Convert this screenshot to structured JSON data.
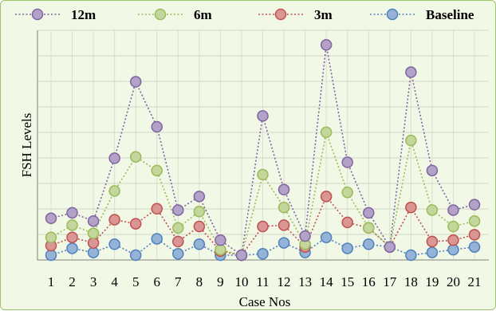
{
  "chart_data": {
    "type": "line",
    "ylabel": "FSH Levels",
    "xlabel": "Case Nos",
    "categories": [
      "1",
      "2",
      "3",
      "4",
      "5",
      "6",
      "7",
      "8",
      "9",
      "10",
      "11",
      "12",
      "13",
      "14",
      "15",
      "16",
      "17",
      "18",
      "19",
      "20",
      "21"
    ],
    "grid": true,
    "legend_position": "top",
    "series": [
      {
        "name": "12m",
        "color": "#8064a2",
        "fill": "#b3a2c7",
        "values": [
          13.5,
          15.5,
          12.5,
          35.5,
          63.5,
          47.0,
          16.5,
          21.5,
          5.5,
          0.0,
          51.0,
          24.0,
          7.0,
          77.0,
          34.0,
          15.5,
          3.0,
          67.0,
          31.0,
          16.5,
          18.5
        ]
      },
      {
        "name": "6m",
        "color": "#9bbb59",
        "fill": "#c3d69b",
        "values": [
          6.5,
          11.0,
          8.0,
          23.5,
          36.0,
          31.0,
          10.0,
          16.0,
          2.0,
          0.0,
          29.5,
          17.5,
          4.0,
          45.0,
          23.0,
          10.0,
          3.0,
          42.0,
          16.5,
          10.5,
          12.5
        ]
      },
      {
        "name": "3m",
        "color": "#c0504d",
        "fill": "#d99694",
        "values": [
          3.5,
          6.5,
          4.5,
          13.0,
          11.5,
          17.0,
          5.0,
          10.5,
          1.5,
          0.0,
          10.5,
          11.0,
          3.0,
          21.5,
          12.0,
          10.0,
          3.0,
          17.5,
          5.0,
          5.5,
          7.5
        ]
      },
      {
        "name": "Baseline",
        "color": "#4f81bd",
        "fill": "#95b3d7",
        "values": [
          0.0,
          2.5,
          1.0,
          4.0,
          0.0,
          6.0,
          0.5,
          4.0,
          0.0,
          0.0,
          0.5,
          4.5,
          1.0,
          6.5,
          2.5,
          4.0,
          3.0,
          0.0,
          1.0,
          2.0,
          3.0
        ]
      }
    ]
  }
}
